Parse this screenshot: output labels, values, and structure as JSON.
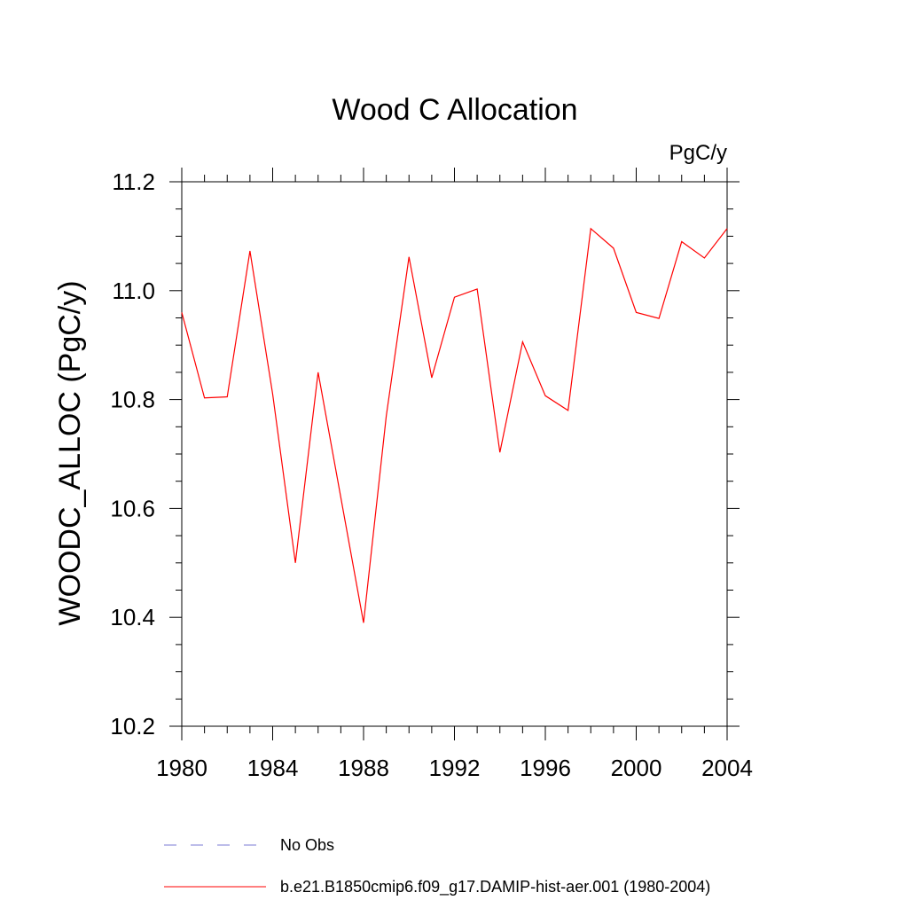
{
  "chart_data": {
    "type": "line",
    "title": "Wood C Allocation",
    "units_label": "PgC/y",
    "xlabel": "",
    "ylabel": "WOODC_ALLOC  (PgC/y)",
    "xlim": [
      1980,
      2004
    ],
    "ylim": [
      10.2,
      11.2
    ],
    "x_ticks": [
      1980,
      1984,
      1988,
      1992,
      1996,
      2000,
      2004
    ],
    "x_tick_labels": [
      "1980",
      "1984",
      "1988",
      "1992",
      "1996",
      "2000",
      "2004"
    ],
    "y_ticks": [
      10.2,
      10.4,
      10.6,
      10.8,
      11.0,
      11.2
    ],
    "y_tick_labels": [
      "10.2",
      "10.4",
      "10.6",
      "10.8",
      "11.0",
      "11.2"
    ],
    "grid": false,
    "legend_position": "bottom",
    "series": [
      {
        "name": "b.e21.B1850cmip6.f09_g17.DAMIP-hist-aer.001 (1980-2004)",
        "color": "#ff0000",
        "style": "solid",
        "x": [
          1980,
          1981,
          1982,
          1983,
          1984,
          1985,
          1986,
          1987,
          1988,
          1989,
          1990,
          1991,
          1992,
          1993,
          1994,
          1995,
          1996,
          1997,
          1998,
          1999,
          2000,
          2001,
          2002,
          2003,
          2004
        ],
        "values": [
          10.96,
          10.803,
          10.805,
          11.073,
          10.81,
          10.5,
          10.85,
          10.62,
          10.39,
          10.77,
          11.062,
          10.84,
          10.988,
          11.003,
          10.703,
          10.906,
          10.807,
          10.78,
          11.114,
          11.078,
          10.96,
          10.949,
          11.09,
          11.06,
          11.114
        ]
      }
    ],
    "legend": [
      {
        "label": "No Obs",
        "color": "#7b7bd6",
        "style": "dashed"
      },
      {
        "label": "b.e21.B1850cmip6.f09_g17.DAMIP-hist-aer.001 (1980-2004)",
        "color": "#ff0000",
        "style": "solid"
      }
    ]
  }
}
